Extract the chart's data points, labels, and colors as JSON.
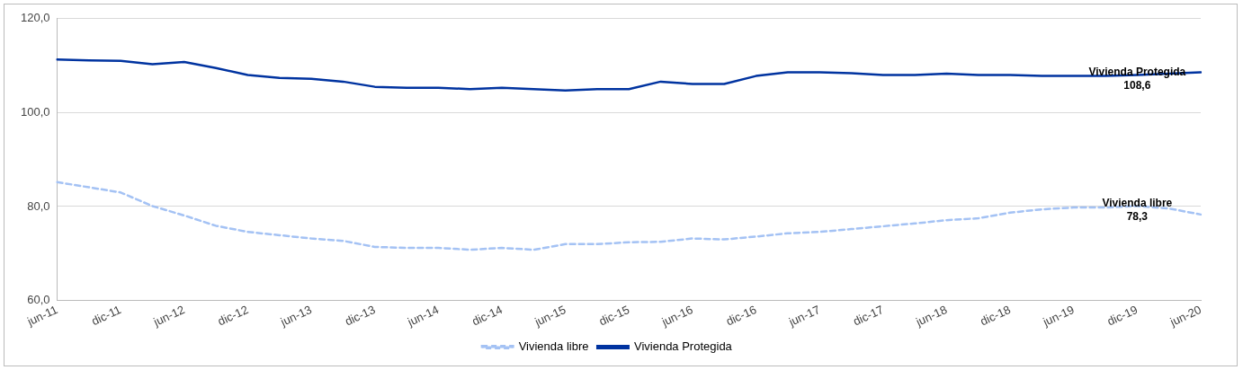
{
  "chart_data": {
    "type": "line",
    "categories": [
      "jun-11",
      null,
      "dic-11",
      null,
      "jun-12",
      null,
      "dic-12",
      null,
      "jun-13",
      null,
      "dic-13",
      null,
      "jun-14",
      null,
      "dic-14",
      null,
      "jun-15",
      null,
      "dic-15",
      null,
      "jun-16",
      null,
      "dic-16",
      null,
      "jun-17",
      null,
      "dic-17",
      null,
      "jun-18",
      null,
      "dic-18",
      null,
      "jun-19",
      null,
      "dic-19",
      null,
      "jun-20"
    ],
    "series": [
      {
        "name": "Vivienda libre",
        "color": "#a4c2f4",
        "line_style": "dashed",
        "values": [
          85.2,
          84.1,
          83.0,
          80.1,
          78.1,
          75.9,
          74.6,
          73.9,
          73.2,
          72.7,
          71.4,
          71.2,
          71.2,
          70.8,
          71.2,
          70.8,
          72.0,
          72.0,
          72.4,
          72.5,
          73.2,
          73.0,
          73.6,
          74.3,
          74.6,
          75.2,
          75.8,
          76.4,
          77.1,
          77.5,
          78.7,
          79.4,
          79.8,
          79.8,
          80.1,
          79.6,
          78.3
        ]
      },
      {
        "name": "Vivienda Protegida",
        "color": "#0033a0",
        "line_style": "solid",
        "values": [
          111.3,
          111.1,
          111.0,
          110.3,
          110.8,
          109.5,
          108.0,
          107.4,
          107.2,
          106.6,
          105.5,
          105.3,
          105.3,
          105.0,
          105.3,
          105.0,
          104.7,
          105.0,
          105.0,
          106.6,
          106.1,
          106.1,
          107.8,
          108.6,
          108.6,
          108.4,
          108.0,
          108.0,
          108.3,
          108.0,
          108.0,
          107.8,
          107.8,
          107.8,
          108.0,
          108.3,
          108.6
        ]
      }
    ],
    "ylim": [
      60,
      120
    ],
    "yticks": [
      {
        "value": 60,
        "label": "60,0"
      },
      {
        "value": 80,
        "label": "80,0"
      },
      {
        "value": 100,
        "label": "100,0"
      },
      {
        "value": 120,
        "label": "120,0"
      }
    ],
    "grid": "y",
    "legend": "bottom",
    "marker": "none",
    "annotations": [
      {
        "text": "Vivienda Protegida\n108,6",
        "x": "dic-19",
        "y": 108.0
      },
      {
        "text": "Vivienda libre\n78,3",
        "x": "dic-19",
        "y": 80.1
      }
    ]
  }
}
